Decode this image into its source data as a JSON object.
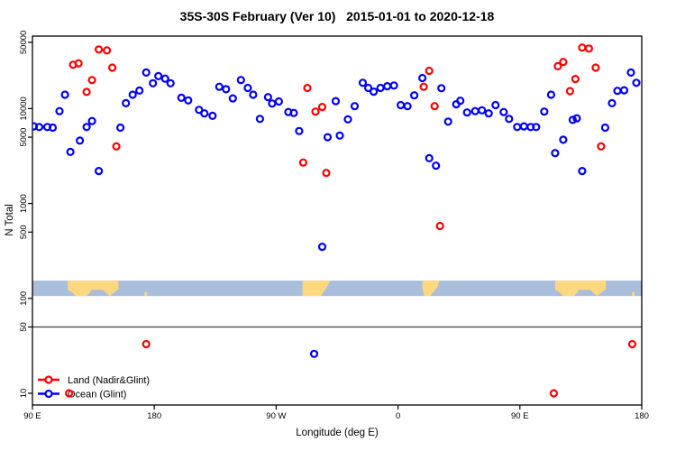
{
  "chart_data": {
    "type": "scatter",
    "title": "35S-30S February (Ver 10)   2015-01-01 to 2020-12-18",
    "xlabel": "Longitude (deg E)",
    "ylabel": "N Total",
    "x_axis": {
      "range": [
        90,
        540
      ],
      "ticks": [
        {
          "value": 90,
          "label": "90 E"
        },
        {
          "value": 180,
          "label": "180"
        },
        {
          "value": 270,
          "label": "90 W"
        },
        {
          "value": 360,
          "label": "0"
        },
        {
          "value": 450,
          "label": "90 E"
        },
        {
          "value": 540,
          "label": "180"
        }
      ]
    },
    "y_axis": {
      "scale": "log10",
      "range": [
        7.5,
        58000
      ],
      "ticks": [
        {
          "value": 10,
          "label": "10"
        },
        {
          "value": 50,
          "label": "50"
        },
        {
          "value": 100,
          "label": "100"
        },
        {
          "value": 500,
          "label": "500"
        },
        {
          "value": 1000,
          "label": "1000"
        },
        {
          "value": 5000,
          "label": "5000"
        },
        {
          "value": 10000,
          "label": "10000"
        },
        {
          "value": 50000,
          "label": "50000"
        }
      ]
    },
    "reference_line": {
      "value": 50,
      "color": "#404040"
    },
    "map_strip": {
      "description": "coastline strip of the 35S-30S latitude band",
      "value_range": [
        106,
        154
      ],
      "ocean_color": "#a9bedb",
      "land_color": "#fdd87e",
      "repeat_offsets": [
        0,
        360
      ],
      "land_polygons_lon_frac": [
        [
          [
            116,
            0
          ],
          [
            153.5,
            0
          ],
          [
            153.5,
            0.55
          ],
          [
            147,
            1
          ],
          [
            142,
            0.6
          ],
          [
            134,
            0.6
          ],
          [
            130,
            1
          ],
          [
            122,
            1
          ],
          [
            119,
            0.75
          ],
          [
            116,
            0.6
          ]
        ],
        [
          [
            172.8,
            0.75
          ],
          [
            174.6,
            0.75
          ],
          [
            174.6,
            1
          ],
          [
            172.8,
            1
          ]
        ],
        [
          [
            289.5,
            0
          ],
          [
            310,
            0
          ],
          [
            306.5,
            0.55
          ],
          [
            303,
            1
          ],
          [
            289.5,
            1
          ]
        ],
        [
          [
            378,
            0
          ],
          [
            390.5,
            0
          ],
          [
            389,
            0.45
          ],
          [
            383.5,
            1
          ],
          [
            379.5,
            1
          ],
          [
            378,
            0.5
          ]
        ]
      ]
    },
    "legend": {
      "position": "bottom-left"
    },
    "series": [
      {
        "name": "Land (Nadir&Glint)",
        "color": "#ff0000",
        "marker": "open-circle",
        "points": [
          [
            139,
            42000
          ],
          [
            145,
            41000
          ],
          [
            120,
            29000
          ],
          [
            124,
            30000
          ],
          [
            149,
            27000
          ],
          [
            134,
            20000
          ],
          [
            130,
            15000
          ],
          [
            152,
            4000
          ],
          [
            293,
            16500
          ],
          [
            299,
            9300
          ],
          [
            304,
            10400
          ],
          [
            290,
            2700
          ],
          [
            307,
            2100
          ],
          [
            383,
            25000
          ],
          [
            379,
            17000
          ],
          [
            387,
            10600
          ],
          [
            391,
            580
          ],
          [
            496,
            44000
          ],
          [
            501,
            43000
          ],
          [
            478,
            28000
          ],
          [
            482,
            31000
          ],
          [
            491,
            20500
          ],
          [
            487,
            15300
          ],
          [
            506,
            27000
          ],
          [
            510,
            4000
          ],
          [
            174,
            33
          ],
          [
            533,
            33
          ],
          [
            117,
            10
          ],
          [
            475,
            10
          ]
        ]
      },
      {
        "name": "Ocean (Glint)",
        "color": "#0000ff",
        "marker": "open-circle",
        "points": [
          [
            91,
            6500
          ],
          [
            95,
            6400
          ],
          [
            101,
            6400
          ],
          [
            105,
            6300
          ],
          [
            114,
            14000
          ],
          [
            110,
            9400
          ],
          [
            130,
            6400
          ],
          [
            134,
            7400
          ],
          [
            125,
            4600
          ],
          [
            118,
            3500
          ],
          [
            139,
            2200
          ],
          [
            155,
            6300
          ],
          [
            159,
            11400
          ],
          [
            164,
            14000
          ],
          [
            169,
            15500
          ],
          [
            174,
            24000
          ],
          [
            179,
            18500
          ],
          [
            183,
            22000
          ],
          [
            188,
            20700
          ],
          [
            192,
            18500
          ],
          [
            200,
            13000
          ],
          [
            205,
            12200
          ],
          [
            213,
            9700
          ],
          [
            217,
            8900
          ],
          [
            223,
            8400
          ],
          [
            228,
            17000
          ],
          [
            233,
            16000
          ],
          [
            238,
            12800
          ],
          [
            244,
            20000
          ],
          [
            249,
            16500
          ],
          [
            253,
            14000
          ],
          [
            258,
            7800
          ],
          [
            264,
            13200
          ],
          [
            267,
            11300
          ],
          [
            272,
            11900
          ],
          [
            279,
            9200
          ],
          [
            283,
            9000
          ],
          [
            287,
            5800
          ],
          [
            308,
            5000
          ],
          [
            317,
            5200
          ],
          [
            314,
            12000
          ],
          [
            328,
            10600
          ],
          [
            323,
            7700
          ],
          [
            334,
            18700
          ],
          [
            338,
            16500
          ],
          [
            342,
            15100
          ],
          [
            347,
            16500
          ],
          [
            352,
            17200
          ],
          [
            357,
            17500
          ],
          [
            362,
            10900
          ],
          [
            367,
            10600
          ],
          [
            372,
            13800
          ],
          [
            378,
            21000
          ],
          [
            383,
            3000
          ],
          [
            388,
            2500
          ],
          [
            392,
            16400
          ],
          [
            397,
            7300
          ],
          [
            403,
            11100
          ],
          [
            406,
            12100
          ],
          [
            411,
            9100
          ],
          [
            417,
            9400
          ],
          [
            422,
            9600
          ],
          [
            427,
            8900
          ],
          [
            432,
            10900
          ],
          [
            438,
            9200
          ],
          [
            442,
            7800
          ],
          [
            448,
            6400
          ],
          [
            453,
            6500
          ],
          [
            458,
            6400
          ],
          [
            462,
            6400
          ],
          [
            468,
            9300
          ],
          [
            473,
            14000
          ],
          [
            476,
            3400
          ],
          [
            482,
            4700
          ],
          [
            489,
            7600
          ],
          [
            492,
            7900
          ],
          [
            496,
            2200
          ],
          [
            513,
            6300
          ],
          [
            518,
            11400
          ],
          [
            522,
            15400
          ],
          [
            527,
            15600
          ],
          [
            532,
            24000
          ],
          [
            536,
            18700
          ],
          [
            304,
            350
          ],
          [
            298,
            26
          ]
        ]
      }
    ]
  }
}
